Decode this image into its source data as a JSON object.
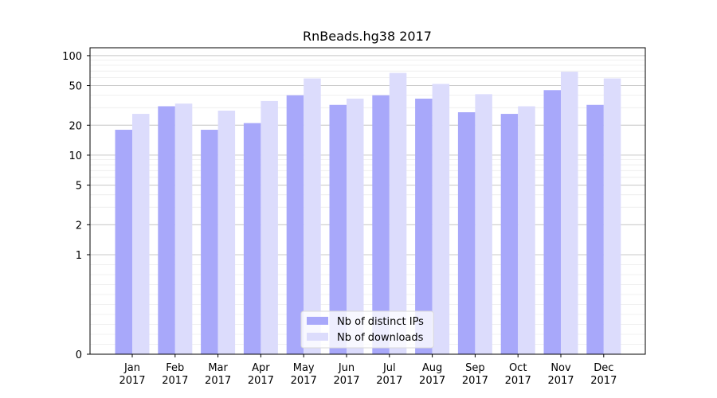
{
  "chart_data": {
    "type": "bar",
    "title": "RnBeads.hg38 2017",
    "xlabel": "",
    "ylabel": "",
    "yscale": "symlog",
    "ylim": [
      0,
      120
    ],
    "y_ticks": [
      0,
      1,
      2,
      5,
      10,
      20,
      50,
      100
    ],
    "categories": [
      [
        "Jan",
        "2017"
      ],
      [
        "Feb",
        "2017"
      ],
      [
        "Mar",
        "2017"
      ],
      [
        "Apr",
        "2017"
      ],
      [
        "May",
        "2017"
      ],
      [
        "Jun",
        "2017"
      ],
      [
        "Jul",
        "2017"
      ],
      [
        "Aug",
        "2017"
      ],
      [
        "Sep",
        "2017"
      ],
      [
        "Oct",
        "2017"
      ],
      [
        "Nov",
        "2017"
      ],
      [
        "Dec",
        "2017"
      ]
    ],
    "series": [
      {
        "name": "Nb of distinct IPs",
        "color": "#a8a8fa",
        "values": [
          18,
          31,
          18,
          21,
          40,
          32,
          40,
          37,
          27,
          26,
          45,
          32
        ]
      },
      {
        "name": "Nb of downloads",
        "color": "#dcdcfc",
        "values": [
          26,
          33,
          28,
          35,
          59,
          37,
          67,
          52,
          41,
          31,
          69,
          59
        ]
      }
    ],
    "grid": "horizontal",
    "legend": "lower-center"
  }
}
